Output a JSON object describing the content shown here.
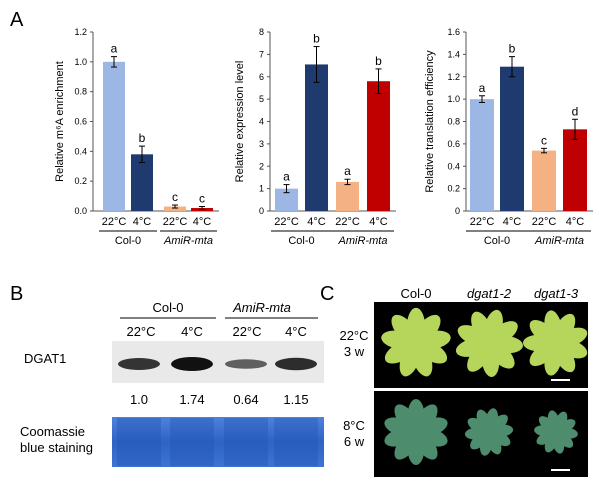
{
  "panel_labels": {
    "a": "A",
    "b": "B",
    "c": "C"
  },
  "colors": {
    "col0_22": "#9db7e4",
    "col0_4": "#1f3a6e",
    "amir_22": "#f4b183",
    "amir_4": "#c00000",
    "blot_bg": "#e9e9e9",
    "coomassie": "#2f64c8",
    "photo_bg": "#000000",
    "leaf_warm": "#b5d65a",
    "leaf_cold": "#4e8c6e"
  },
  "chart_data": [
    {
      "type": "bar",
      "ylabel": "Relative m⁶A enrichment",
      "ylim": [
        0,
        1.2
      ],
      "yticks": [
        "0.0",
        "0.2",
        "0.4",
        "0.6",
        "0.8",
        "1.0",
        "1.2"
      ],
      "categories": [
        "22°C",
        "4°C",
        "22°C",
        "4°C"
      ],
      "groups": [
        "Col-0",
        "AmiR-mta"
      ],
      "values": [
        1.0,
        0.38,
        0.03,
        0.02
      ],
      "errors": [
        0.035,
        0.055,
        0.01,
        0.01
      ],
      "letters": [
        "a",
        "b",
        "c",
        "c"
      ]
    },
    {
      "type": "bar",
      "ylabel": "Relative expression level",
      "ylim": [
        0,
        8
      ],
      "yticks": [
        "0",
        "1",
        "2",
        "3",
        "4",
        "5",
        "6",
        "7",
        "8"
      ],
      "categories": [
        "22°C",
        "4°C",
        "22°C",
        "4°C"
      ],
      "groups": [
        "Col-0",
        "AmiR-mta"
      ],
      "values": [
        1.0,
        6.55,
        1.3,
        5.8
      ],
      "errors": [
        0.18,
        0.8,
        0.12,
        0.55
      ],
      "letters": [
        "a",
        "b",
        "a",
        "b"
      ]
    },
    {
      "type": "bar",
      "ylabel": "Relative translation efficiency",
      "ylim": [
        0,
        1.6
      ],
      "yticks": [
        "0",
        "0.2",
        "0.4",
        "0.6",
        "0.8",
        "1.0",
        "1.2",
        "1.4",
        "1.6"
      ],
      "categories": [
        "22°C",
        "4°C",
        "22°C",
        "4°C"
      ],
      "groups": [
        "Col-0",
        "AmiR-mta"
      ],
      "values": [
        1.0,
        1.29,
        0.54,
        0.73
      ],
      "errors": [
        0.03,
        0.09,
        0.02,
        0.09
      ],
      "letters": [
        "a",
        "b",
        "c",
        "d"
      ]
    }
  ],
  "blot": {
    "group_col0": "Col-0",
    "group_amir": "AmiR-mta",
    "temps": [
      "22°C",
      "4°C",
      "22°C",
      "4°C"
    ],
    "row_label": "DGAT1",
    "values": [
      "1.0",
      "1.74",
      "0.64",
      "1.15"
    ],
    "intensity": [
      0.75,
      1.0,
      0.45,
      0.8
    ],
    "stain_label_1": "Coomassie",
    "stain_label_2": "blue staining"
  },
  "photos": {
    "genotypes": [
      "Col-0",
      "dgat1-2",
      "dgat1-3"
    ],
    "row1_temp": "22°C",
    "row1_time": "3 w",
    "row2_temp": "8°C",
    "row2_time": "6 w"
  }
}
